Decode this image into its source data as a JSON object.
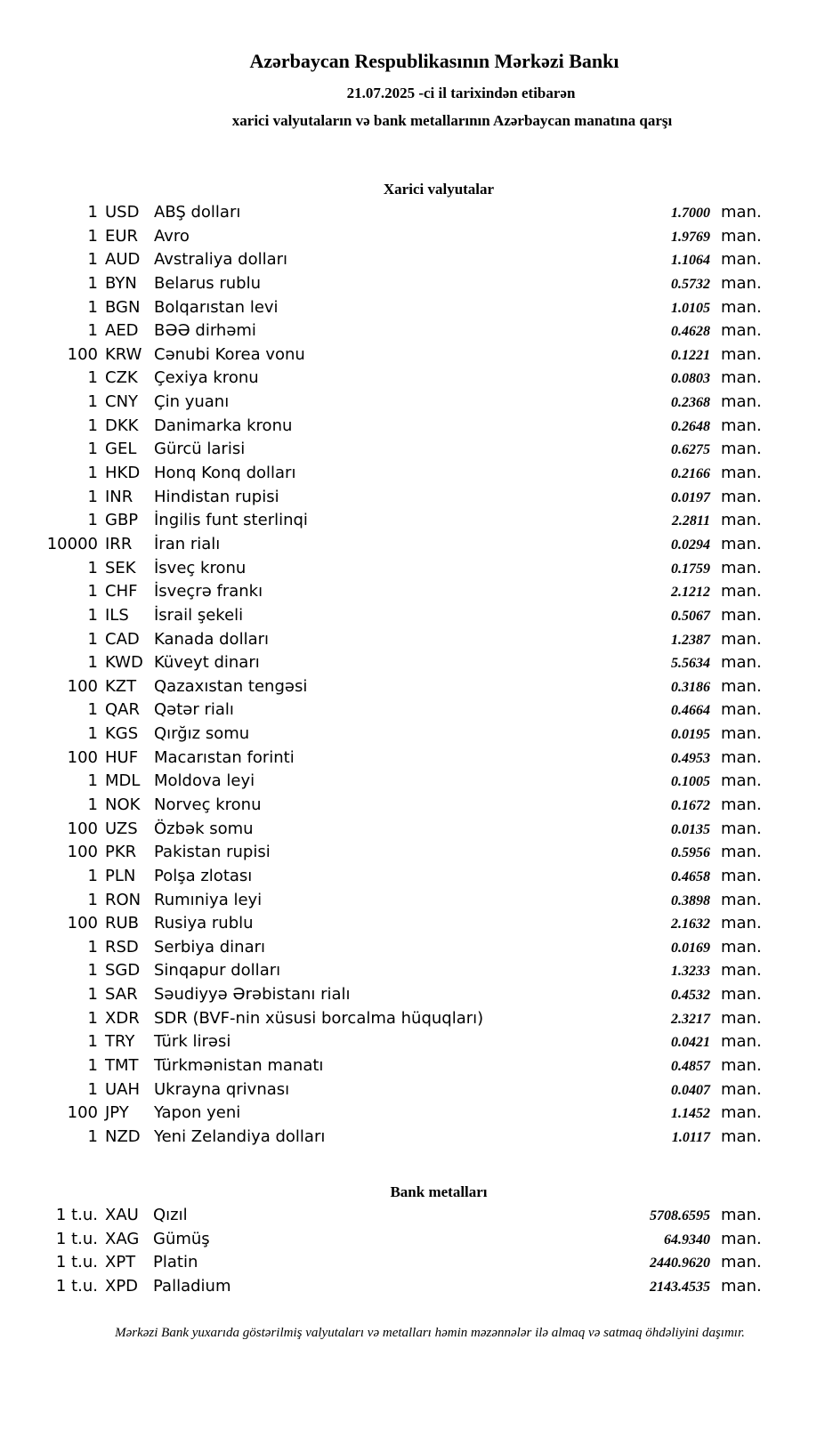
{
  "header": {
    "title": "Azərbaycan Respublikasının Mərkəzi Bankı",
    "date_line": "21.07.2025 -ci il tarixindən etibarən",
    "subtitle": "xarici valyutaların və bank metallarının Azərbaycan manatına qarşı"
  },
  "unit": "man.",
  "currencies": {
    "heading": "Xarici valyutalar",
    "rows": [
      {
        "mult": "1",
        "code": "USD",
        "name": "ABŞ dolları",
        "value": "1.7000"
      },
      {
        "mult": "1",
        "code": "EUR",
        "name": "Avro",
        "value": "1.9769"
      },
      {
        "mult": "1",
        "code": "AUD",
        "name": "Avstraliya dolları",
        "value": "1.1064"
      },
      {
        "mult": "1",
        "code": "BYN",
        "name": "Belarus rublu",
        "value": "0.5732"
      },
      {
        "mult": "1",
        "code": "BGN",
        "name": "Bolqarıstan levi",
        "value": "1.0105"
      },
      {
        "mult": "1",
        "code": "AED",
        "name": "BƏƏ dirhəmi",
        "value": "0.4628"
      },
      {
        "mult": "100",
        "code": "KRW",
        "name": "Cənubi Korea vonu",
        "value": "0.1221"
      },
      {
        "mult": "1",
        "code": "CZK",
        "name": "Çexiya kronu",
        "value": "0.0803"
      },
      {
        "mult": "1",
        "code": "CNY",
        "name": "Çin yuanı",
        "value": "0.2368"
      },
      {
        "mult": "1",
        "code": "DKK",
        "name": "Danimarka kronu",
        "value": "0.2648"
      },
      {
        "mult": "1",
        "code": "GEL",
        "name": "Gürcü larisi",
        "value": "0.6275"
      },
      {
        "mult": "1",
        "code": "HKD",
        "name": "Honq Konq dolları",
        "value": "0.2166"
      },
      {
        "mult": "1",
        "code": "INR",
        "name": "Hindistan rupisi",
        "value": "0.0197"
      },
      {
        "mult": "1",
        "code": "GBP",
        "name": "İngilis funt sterlinqi",
        "value": "2.2811"
      },
      {
        "mult": "10000",
        "code": "IRR",
        "name": "İran rialı",
        "value": "0.0294"
      },
      {
        "mult": "1",
        "code": "SEK",
        "name": "İsveç kronu",
        "value": "0.1759"
      },
      {
        "mult": "1",
        "code": "CHF",
        "name": "İsveçrə frankı",
        "value": "2.1212"
      },
      {
        "mult": "1",
        "code": "ILS",
        "name": "İsrail şekeli",
        "value": "0.5067"
      },
      {
        "mult": "1",
        "code": "CAD",
        "name": "Kanada dolları",
        "value": "1.2387"
      },
      {
        "mult": "1",
        "code": "KWD",
        "name": "Küveyt dinarı",
        "value": "5.5634"
      },
      {
        "mult": "100",
        "code": "KZT",
        "name": "Qazaxıstan tengəsi",
        "value": "0.3186"
      },
      {
        "mult": "1",
        "code": "QAR",
        "name": "Qətər rialı",
        "value": "0.4664"
      },
      {
        "mult": "1",
        "code": "KGS",
        "name": "Qırğız somu",
        "value": "0.0195"
      },
      {
        "mult": "100",
        "code": "HUF",
        "name": "Macarıstan forinti",
        "value": "0.4953"
      },
      {
        "mult": "1",
        "code": "MDL",
        "name": "Moldova leyi",
        "value": "0.1005"
      },
      {
        "mult": "1",
        "code": "NOK",
        "name": "Norveç kronu",
        "value": "0.1672"
      },
      {
        "mult": "100",
        "code": "UZS",
        "name": "Özbək somu",
        "value": "0.0135"
      },
      {
        "mult": "100",
        "code": "PKR",
        "name": "Pakistan rupisi",
        "value": "0.5956"
      },
      {
        "mult": "1",
        "code": "PLN",
        "name": "Polşa zlotası",
        "value": "0.4658"
      },
      {
        "mult": "1",
        "code": "RON",
        "name": "Rumıniya leyi",
        "value": "0.3898"
      },
      {
        "mult": "100",
        "code": "RUB",
        "name": "Rusiya rublu",
        "value": "2.1632"
      },
      {
        "mult": "1",
        "code": "RSD",
        "name": "Serbiya dinarı",
        "value": "0.0169"
      },
      {
        "mult": "1",
        "code": "SGD",
        "name": "Sinqapur dolları",
        "value": "1.3233"
      },
      {
        "mult": "1",
        "code": "SAR",
        "name": "Səudiyyə Ərəbistanı rialı",
        "value": "0.4532"
      },
      {
        "mult": "1",
        "code": "XDR",
        "name": "SDR (BVF-nin xüsusi borcalma hüquqları)",
        "value": "2.3217"
      },
      {
        "mult": "1",
        "code": "TRY",
        "name": "Türk lirəsi",
        "value": "0.0421"
      },
      {
        "mult": "1",
        "code": "TMT",
        "name": "Türkmənistan manatı",
        "value": "0.4857"
      },
      {
        "mult": "1",
        "code": "UAH",
        "name": "Ukrayna qrivnası",
        "value": "0.0407"
      },
      {
        "mult": "100",
        "code": "JPY",
        "name": "Yapon yeni",
        "value": "1.1452"
      },
      {
        "mult": "1",
        "code": "NZD",
        "name": "Yeni Zelandiya dolları",
        "value": "1.0117"
      }
    ]
  },
  "metals": {
    "heading": "Bank metalları",
    "rows": [
      {
        "mult": "1 t.u.",
        "code": "XAU",
        "name": "Qızıl",
        "value": "5708.6595"
      },
      {
        "mult": "1 t.u.",
        "code": "XAG",
        "name": "Gümüş",
        "value": "64.9340"
      },
      {
        "mult": "1 t.u.",
        "code": "XPT",
        "name": "Platin",
        "value": "2440.9620"
      },
      {
        "mult": "1 t.u.",
        "code": "XPD",
        "name": "Palladium",
        "value": "2143.4535"
      }
    ]
  },
  "footer": "Mərkəzi Bank yuxarıda göstərilmiş valyutaları və metalları həmin məzənnələr ilə almaq və satmaq öhdəliyini daşımır."
}
